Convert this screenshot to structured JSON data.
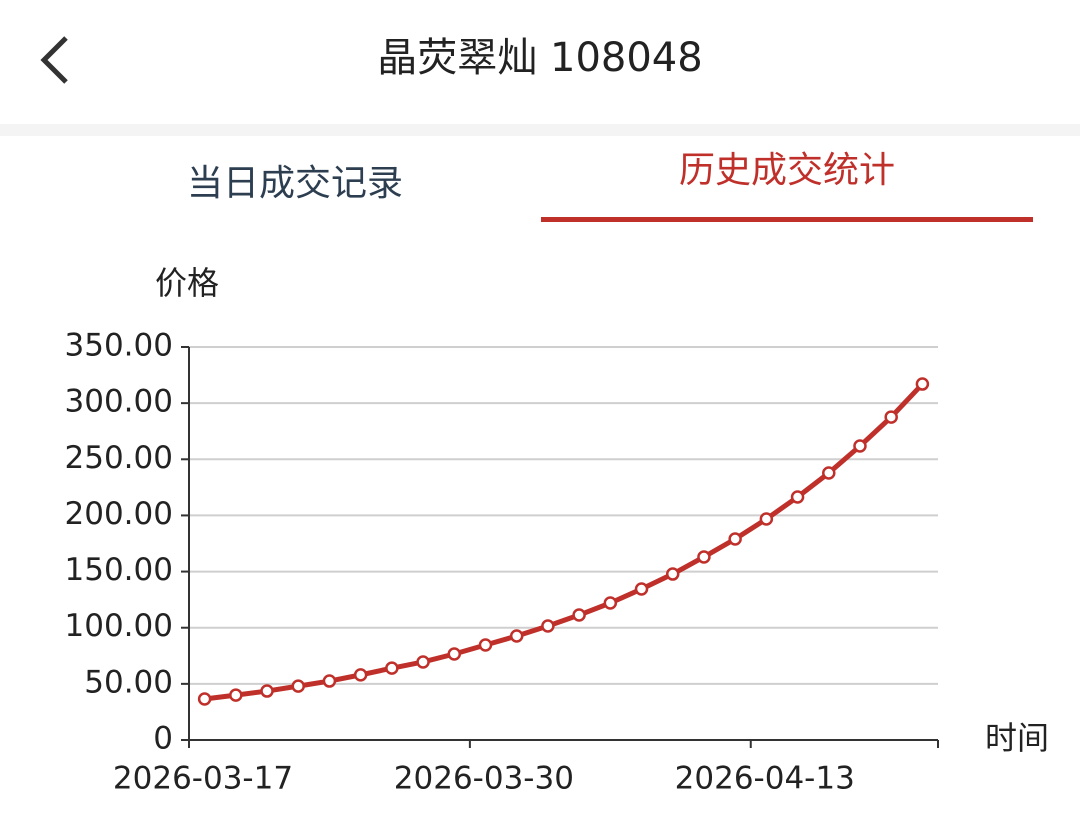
{
  "header": {
    "title": "晶荧翠灿 108048"
  },
  "tabs": [
    "当日成交记录",
    "历史成交统计"
  ],
  "chart_data": {
    "type": "line",
    "y_label": "价格",
    "x_label": "时间",
    "categories": [
      "2026-03-17",
      null,
      null,
      null,
      null,
      null,
      null,
      null,
      null,
      "2026-03-30",
      null,
      null,
      null,
      null,
      null,
      null,
      null,
      null,
      "2026-04-13",
      null,
      null,
      null,
      null,
      null
    ],
    "values": [
      36.5,
      40,
      43.6,
      48,
      52.5,
      58,
      64,
      69.5,
      76.6,
      84.6,
      92.6,
      101.5,
      111.3,
      122,
      134.5,
      147.8,
      163,
      179,
      196.8,
      216.4,
      237.8,
      261.8,
      287.6,
      317
    ],
    "color": "#c0302b",
    "ylim": [
      0,
      350
    ],
    "yticks": [
      0,
      {
        "value": 50,
        "label": "50.00"
      },
      {
        "value": 100,
        "label": "100.00"
      },
      {
        "value": 150,
        "label": "150.00"
      },
      {
        "value": 200,
        "label": "200.00"
      },
      {
        "value": 250,
        "label": "250.00"
      },
      {
        "value": 300,
        "label": "300.00"
      },
      {
        "value": 350,
        "label": "350.00"
      }
    ],
    "grid": true
  }
}
